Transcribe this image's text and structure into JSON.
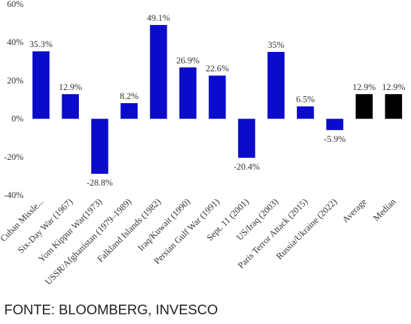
{
  "chart_data": {
    "type": "bar",
    "categories": [
      "Cuban Missle...",
      "Six-Day War (1967)",
      "Yom Kippur War(1973)",
      "USSR/Afghanistan (1979–1989)",
      "Falkland Islands (1982)",
      "Iraq/Kuwait (1990)",
      "Persian Gulf War (1991)",
      "Sept. 11 (2001)",
      "US/Iraq (2003)",
      "Paris Terror Attack (2015)",
      "Russia/Ukraine (2022)",
      "Average",
      "Median"
    ],
    "values": [
      35.3,
      12.9,
      -28.8,
      8.2,
      49.1,
      26.9,
      22.6,
      -20.4,
      35,
      6.5,
      -5.9,
      12.9,
      12.9
    ],
    "value_labels": [
      "35.3%",
      "12.9%",
      "-28.8%",
      "8.2%",
      "49.1%",
      "26.9%",
      "22.6%",
      "-20.4%",
      "35%",
      "6.5%",
      "-5.9%",
      "12.9%",
      "12.9%"
    ],
    "colors": [
      "#0b0bcc",
      "#0b0bcc",
      "#0b0bcc",
      "#0b0bcc",
      "#0b0bcc",
      "#0b0bcc",
      "#0b0bcc",
      "#0b0bcc",
      "#0b0bcc",
      "#0b0bcc",
      "#0b0bcc",
      "#000000",
      "#000000"
    ],
    "ylim": [
      -40,
      60
    ],
    "yticks": [
      {
        "value": -40,
        "label": "-40%"
      },
      {
        "value": -20,
        "label": "-20%"
      },
      {
        "value": 0,
        "label": "0%"
      },
      {
        "value": 20,
        "label": "20%"
      },
      {
        "value": 40,
        "label": "40%"
      },
      {
        "value": 60,
        "label": "60%"
      }
    ],
    "grid": false
  },
  "source": "FONTE: BLOOMBERG, INVESCO"
}
